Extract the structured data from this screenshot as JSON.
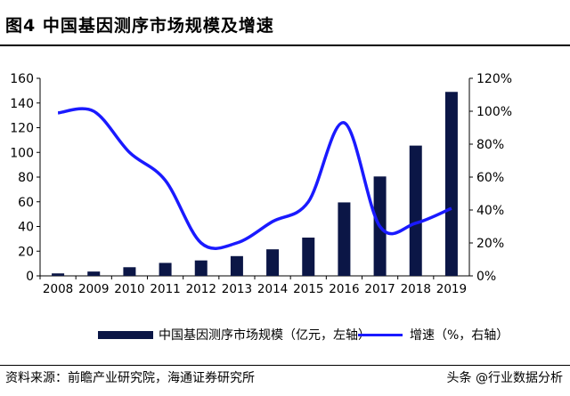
{
  "figure": {
    "title": "图4   中国基因测序市场规模及增速",
    "source": "资料来源：前瞻产业研究院，海通证券研究所",
    "credit": "头条 @行业数据分析"
  },
  "legend": {
    "bar_label": "中国基因测序市场规模（亿元，左轴）",
    "line_label": "增速（%，右轴）"
  },
  "chart_data": {
    "type": "bar",
    "categories": [
      "2008",
      "2009",
      "2010",
      "2011",
      "2012",
      "2013",
      "2014",
      "2015",
      "2016",
      "2017",
      "2018",
      "2019"
    ],
    "series": [
      {
        "name": "中国基因测序市场规模（亿元，左轴）",
        "type": "bar",
        "axis": "left",
        "values": [
          2,
          3.5,
          7,
          10.5,
          12.5,
          16,
          21.5,
          31,
          59.5,
          80.5,
          105.5,
          149
        ]
      },
      {
        "name": "增速（%，右轴）",
        "type": "line",
        "axis": "right",
        "smooth": true,
        "values": [
          99,
          100,
          75,
          58,
          20,
          20,
          33,
          45,
          93,
          30,
          32,
          41
        ]
      }
    ],
    "left_axis": {
      "ylim": [
        0,
        160
      ],
      "ticks": [
        "0",
        "20",
        "40",
        "60",
        "80",
        "100",
        "120",
        "140",
        "160"
      ]
    },
    "right_axis": {
      "ylim": [
        0,
        120
      ],
      "ticks": [
        "0%",
        "20%",
        "40%",
        "60%",
        "80%",
        "100%",
        "120%"
      ]
    },
    "colors": {
      "bar": "#0b1646",
      "line": "#1a1aff"
    },
    "grid": false,
    "legend_position": "bottom"
  }
}
